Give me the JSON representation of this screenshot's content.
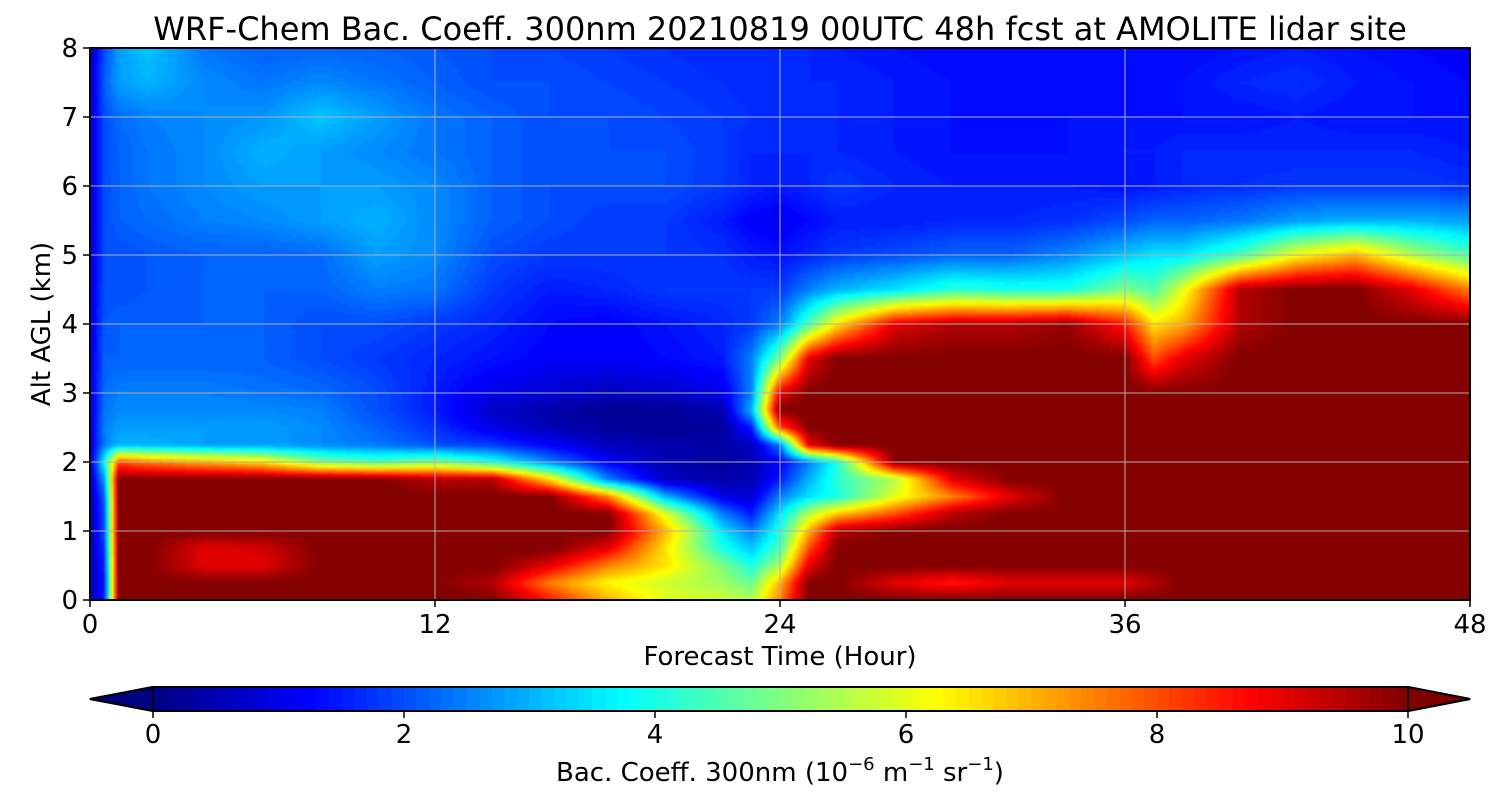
{
  "chart_data": {
    "type": "heatmap",
    "title": "WRF-Chem Bac. Coeff. 300nm  20210819 00UTC 48h fcst at AMOLITE lidar site",
    "xlabel": "Forecast Time (Hour)",
    "ylabel": "Alt AGL (km)",
    "xlim": [
      0,
      48
    ],
    "ylim": [
      0,
      8
    ],
    "x_ticks": [
      0,
      12,
      24,
      36,
      48
    ],
    "y_ticks": [
      0,
      1,
      2,
      3,
      4,
      5,
      6,
      7,
      8
    ],
    "grid": true,
    "colormap": "jet",
    "colorbar": {
      "orientation": "horizontal",
      "range": [
        0,
        10
      ],
      "ticks": [
        0,
        2,
        4,
        6,
        8,
        10
      ],
      "extend": "both",
      "label_prefix": "Bac. Coeff. 300nm  (10",
      "label_exp1": "−6",
      "label_mid": " m",
      "label_exp2": "−1",
      "label_mid2": " sr",
      "label_exp3": "−1",
      "label_suffix": ")"
    },
    "x": [
      0,
      0.5,
      1,
      2,
      4,
      6,
      8,
      10,
      12,
      14,
      16,
      18,
      20,
      22,
      23,
      24,
      25,
      26,
      28,
      30,
      32,
      34,
      36,
      37,
      38,
      40,
      42,
      44,
      46,
      48
    ],
    "y": [
      0,
      0.25,
      0.5,
      0.75,
      1,
      1.25,
      1.5,
      1.75,
      2,
      2.25,
      2.5,
      2.75,
      3,
      3.5,
      4,
      4.5,
      5,
      5.5,
      6,
      6.5,
      7,
      7.5,
      8
    ],
    "values": [
      [
        0.5,
        1.5,
        10,
        10,
        10,
        10,
        10,
        10,
        10,
        10,
        8.5,
        7,
        6,
        5.8,
        5.5,
        7.5,
        10,
        10,
        10,
        10,
        10,
        10,
        10,
        10,
        10,
        10,
        10,
        10,
        10,
        10
      ],
      [
        0.5,
        1.5,
        10,
        10,
        10,
        10,
        10,
        10,
        10,
        9.5,
        7.5,
        6.3,
        5.8,
        5.3,
        4.8,
        7,
        10,
        10,
        9,
        8.5,
        9,
        9,
        9,
        9.5,
        10,
        10,
        10,
        10,
        10,
        10
      ],
      [
        0.5,
        1.6,
        10,
        10,
        9,
        9,
        10,
        10,
        10,
        10,
        9,
        7.5,
        6.5,
        5,
        4,
        5.5,
        9,
        10,
        10,
        10,
        10,
        10,
        10,
        10,
        10,
        10,
        10,
        10,
        10,
        10
      ],
      [
        0.5,
        1.8,
        10,
        10,
        9,
        9.2,
        10,
        10,
        10,
        10,
        10,
        9,
        6.5,
        4,
        3.2,
        4.5,
        8,
        10,
        10,
        10,
        10,
        10,
        10,
        10,
        10,
        10,
        10,
        10,
        10,
        10
      ],
      [
        0.5,
        2,
        10,
        10,
        10,
        10,
        10,
        10,
        10,
        10,
        10,
        10,
        7,
        3.5,
        2.5,
        4,
        7,
        9.5,
        10,
        10,
        10,
        10,
        10,
        10,
        10,
        10,
        10,
        10,
        10,
        10
      ],
      [
        0.5,
        2,
        10,
        10,
        10,
        10,
        10,
        10,
        10,
        10,
        10,
        10,
        6,
        2.5,
        1.5,
        3.5,
        5.5,
        6.8,
        8,
        9.5,
        10,
        10,
        10,
        10,
        10,
        10,
        10,
        10,
        10,
        10
      ],
      [
        0.5,
        2.2,
        10,
        10,
        10,
        10,
        10,
        10,
        10,
        10,
        10,
        7.5,
        3,
        1,
        0.8,
        2.5,
        3.5,
        4,
        6,
        7.5,
        9,
        10,
        10,
        10,
        10,
        10,
        10,
        10,
        10,
        10
      ],
      [
        0.6,
        2.8,
        10,
        10,
        10,
        10,
        10,
        10,
        9.5,
        9.5,
        6.5,
        2.5,
        0.6,
        0.4,
        0.5,
        1.5,
        3,
        4.2,
        5.5,
        9,
        10,
        10,
        10,
        10,
        10,
        10,
        10,
        10,
        10,
        10
      ],
      [
        0.7,
        3.8,
        8,
        7.5,
        7,
        6.5,
        5,
        4.5,
        5,
        4,
        2.5,
        1.2,
        0.5,
        0.3,
        0.5,
        1.2,
        2.5,
        4,
        10,
        10,
        10,
        10,
        10,
        10,
        10,
        10,
        10,
        10,
        10,
        10
      ],
      [
        0.8,
        2.5,
        3,
        3,
        2.8,
        2.8,
        2.6,
        2.4,
        2,
        1.8,
        1.2,
        0.6,
        0.4,
        0.4,
        0.6,
        2.5,
        9,
        10,
        10,
        10,
        10,
        10,
        10,
        10,
        10,
        10,
        10,
        10,
        10,
        10
      ],
      [
        0.9,
        2.5,
        2.8,
        2.8,
        2.8,
        2.8,
        2.6,
        2.2,
        1.7,
        1,
        0.5,
        0.3,
        0.2,
        0.3,
        1.5,
        8,
        10,
        10,
        10,
        10,
        10,
        10,
        10,
        10,
        10,
        10,
        10,
        10,
        10,
        10
      ],
      [
        0.9,
        2.4,
        2.6,
        2.6,
        2.6,
        2.6,
        2.5,
        2,
        1.5,
        0.7,
        0.4,
        0.2,
        0.2,
        0.5,
        3,
        10,
        10,
        10,
        10,
        10,
        10,
        10,
        10,
        10,
        10,
        10,
        10,
        10,
        10,
        10
      ],
      [
        0.9,
        2.3,
        2.5,
        2.5,
        2.5,
        2.4,
        2.3,
        2,
        1.5,
        1,
        0.8,
        0.6,
        0.7,
        1,
        2.5,
        9,
        10,
        10,
        10,
        10,
        10,
        10,
        10,
        10,
        10,
        10,
        10,
        10,
        10,
        10
      ],
      [
        0.9,
        2.2,
        2.2,
        2.2,
        2.2,
        2.2,
        2,
        1.8,
        1.6,
        1.4,
        1.2,
        1.2,
        1.3,
        1.5,
        2.5,
        5,
        9,
        10,
        10,
        10,
        10,
        10,
        10,
        8,
        9,
        10,
        10,
        10,
        10,
        10
      ],
      [
        0.9,
        2.1,
        2.2,
        2.2,
        2.2,
        2.2,
        2,
        2,
        1.8,
        1.6,
        1.3,
        1.2,
        1.4,
        1.6,
        1.8,
        2.5,
        4.5,
        6.5,
        9,
        9.5,
        9.5,
        9.8,
        8.5,
        6.5,
        7,
        9.5,
        10,
        10,
        10,
        10
      ],
      [
        0.9,
        2,
        2,
        2.1,
        2.2,
        2.2,
        2.2,
        2.5,
        2.4,
        1.8,
        1.5,
        1.6,
        1.8,
        1.8,
        1.8,
        1.8,
        2.5,
        3,
        3.5,
        4.2,
        4,
        4,
        5,
        4.5,
        6,
        9.5,
        10,
        10,
        9,
        7.5
      ],
      [
        0.8,
        2,
        2,
        2.1,
        2.2,
        2.2,
        2.3,
        2.8,
        2.6,
        2,
        1.8,
        1.8,
        1.8,
        1.7,
        1.5,
        1.4,
        1.6,
        1.8,
        2,
        2.2,
        2.2,
        2.6,
        3.2,
        3.5,
        3.5,
        4.5,
        6.2,
        7,
        5.5,
        4.5
      ],
      [
        0.8,
        2,
        2.2,
        2.3,
        2.5,
        2.6,
        2.8,
        3,
        2.6,
        2.2,
        2,
        1.8,
        1.8,
        1.5,
        1.2,
        1.1,
        1.3,
        1.5,
        1.5,
        1.6,
        1.6,
        1.7,
        2,
        2.2,
        2.2,
        2.4,
        2.8,
        3,
        3,
        2.8
      ],
      [
        0.8,
        2,
        2.2,
        2.4,
        2.6,
        2.8,
        2.8,
        2.8,
        2.6,
        2.2,
        2,
        2,
        2,
        1.8,
        1.6,
        1.5,
        1.6,
        1.8,
        1.6,
        1.5,
        1.5,
        1.5,
        1.4,
        1.5,
        1.6,
        1.7,
        1.8,
        1.8,
        1.8,
        1.7
      ],
      [
        0.8,
        2,
        2.2,
        2.4,
        2.6,
        3,
        2.8,
        2.6,
        2.4,
        2.2,
        2,
        2,
        2,
        1.8,
        1.6,
        1.6,
        1.6,
        1.6,
        1.5,
        1.4,
        1.4,
        1.4,
        1.5,
        1.5,
        1.6,
        1.6,
        1.6,
        1.6,
        1.6,
        1.5
      ],
      [
        0.8,
        2,
        2.3,
        2.5,
        2.6,
        2.7,
        3.2,
        2.8,
        2.4,
        2.2,
        2,
        2,
        1.9,
        1.8,
        1.7,
        1.6,
        1.6,
        1.6,
        1.5,
        1.4,
        1.4,
        1.4,
        1.4,
        1.4,
        1.4,
        1.4,
        1.5,
        1.4,
        1.4,
        1.4
      ],
      [
        0.7,
        2.2,
        2.8,
        3,
        2.6,
        2.4,
        2.6,
        2.4,
        2.2,
        2,
        2,
        1.9,
        1.8,
        1.7,
        1.6,
        1.6,
        1.6,
        1.6,
        1.5,
        1.4,
        1.4,
        1.4,
        1.4,
        1.4,
        1.4,
        1.6,
        1.7,
        1.5,
        1.4,
        1.3
      ],
      [
        0.6,
        2,
        2.8,
        3.2,
        2.4,
        2.2,
        2.2,
        2.2,
        2.1,
        2,
        1.9,
        1.8,
        1.7,
        1.6,
        1.6,
        1.6,
        1.6,
        1.5,
        1.4,
        1.3,
        1.3,
        1.3,
        1.3,
        1.3,
        1.3,
        1.4,
        1.5,
        1.4,
        1.3,
        1.2
      ]
    ]
  }
}
